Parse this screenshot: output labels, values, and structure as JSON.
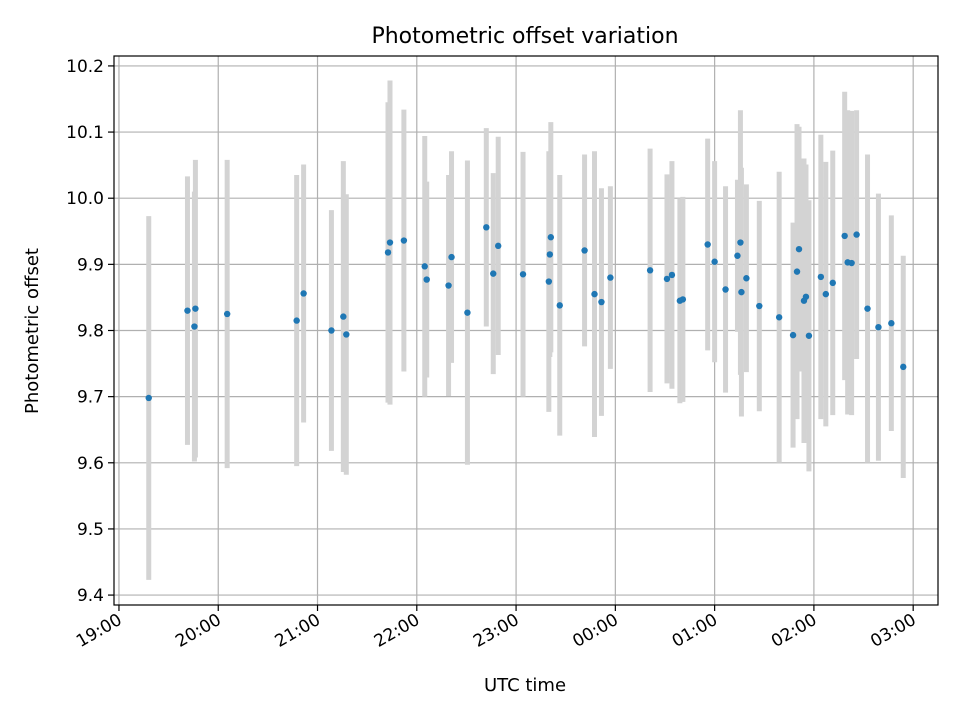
{
  "chart_data": {
    "type": "scatter",
    "title": "Photometric offset variation",
    "xlabel": "UTC time",
    "ylabel": "Photometric offset",
    "x_unit": "hours since 19:00 UTC",
    "xlim": [
      -0.05,
      8.25
    ],
    "ylim": [
      9.385,
      10.215
    ],
    "x_ticks": [
      {
        "v": 0,
        "label": "19:00"
      },
      {
        "v": 1,
        "label": "20:00"
      },
      {
        "v": 2,
        "label": "21:00"
      },
      {
        "v": 3,
        "label": "22:00"
      },
      {
        "v": 4,
        "label": "23:00"
      },
      {
        "v": 5,
        "label": "00:00"
      },
      {
        "v": 6,
        "label": "01:00"
      },
      {
        "v": 7,
        "label": "02:00"
      },
      {
        "v": 8,
        "label": "03:00"
      }
    ],
    "y_ticks": [
      {
        "v": 9.4,
        "label": "9.4"
      },
      {
        "v": 9.5,
        "label": "9.5"
      },
      {
        "v": 9.6,
        "label": "9.6"
      },
      {
        "v": 9.7,
        "label": "9.7"
      },
      {
        "v": 9.8,
        "label": "9.8"
      },
      {
        "v": 9.9,
        "label": "9.9"
      },
      {
        "v": 10.0,
        "label": "10.0"
      },
      {
        "v": 10.1,
        "label": "10.1"
      },
      {
        "v": 10.2,
        "label": "10.2"
      }
    ],
    "grid": true,
    "colors": {
      "points": "#1f77b4",
      "errorbars": "#d3d3d3"
    },
    "points": [
      [
        0.3,
        9.698,
        0.275
      ],
      [
        0.69,
        9.83,
        0.203
      ],
      [
        0.76,
        9.806,
        0.204
      ],
      [
        0.77,
        9.833,
        0.225
      ],
      [
        1.09,
        9.825,
        0.233
      ],
      [
        1.79,
        9.815,
        0.22
      ],
      [
        1.86,
        9.856,
        0.195
      ],
      [
        2.14,
        9.8,
        0.182
      ],
      [
        2.26,
        9.821,
        0.235
      ],
      [
        2.29,
        9.794,
        0.212
      ],
      [
        2.71,
        9.918,
        0.227
      ],
      [
        2.73,
        9.933,
        0.245
      ],
      [
        2.87,
        9.936,
        0.198
      ],
      [
        3.08,
        9.897,
        0.197
      ],
      [
        3.1,
        9.877,
        0.148
      ],
      [
        3.32,
        9.868,
        0.167
      ],
      [
        3.35,
        9.911,
        0.16
      ],
      [
        3.51,
        9.827,
        0.23
      ],
      [
        3.7,
        9.956,
        0.15
      ],
      [
        3.77,
        9.886,
        0.152
      ],
      [
        3.82,
        9.928,
        0.165
      ],
      [
        4.07,
        9.885,
        0.185
      ],
      [
        4.33,
        9.874,
        0.197
      ],
      [
        4.34,
        9.915,
        0.155
      ],
      [
        4.35,
        9.941,
        0.174
      ],
      [
        4.44,
        9.838,
        0.197
      ],
      [
        4.69,
        9.921,
        0.145
      ],
      [
        4.79,
        9.855,
        0.216
      ],
      [
        4.86,
        9.843,
        0.172
      ],
      [
        4.95,
        9.88,
        0.138
      ],
      [
        5.35,
        9.891,
        0.184
      ],
      [
        5.52,
        9.878,
        0.158
      ],
      [
        5.57,
        9.884,
        0.172
      ],
      [
        5.65,
        9.845,
        0.155
      ],
      [
        5.68,
        9.847,
        0.155
      ],
      [
        5.93,
        9.93,
        0.16
      ],
      [
        6.0,
        9.904,
        0.152
      ],
      [
        6.11,
        9.862,
        0.156
      ],
      [
        6.23,
        9.913,
        0.115
      ],
      [
        6.26,
        9.933,
        0.2
      ],
      [
        6.27,
        9.858,
        0.188
      ],
      [
        6.32,
        9.879,
        0.142
      ],
      [
        6.45,
        9.837,
        0.159
      ],
      [
        6.65,
        9.82,
        0.22
      ],
      [
        6.79,
        9.793,
        0.17
      ],
      [
        6.83,
        9.889,
        0.223
      ],
      [
        6.85,
        9.923,
        0.185
      ],
      [
        6.9,
        9.845,
        0.215
      ],
      [
        6.92,
        9.851,
        0.2
      ],
      [
        6.95,
        9.792,
        0.205
      ],
      [
        7.07,
        9.881,
        0.215
      ],
      [
        7.12,
        9.855,
        0.2
      ],
      [
        7.19,
        9.872,
        0.2
      ],
      [
        7.31,
        9.943,
        0.218
      ],
      [
        7.34,
        9.903,
        0.23
      ],
      [
        7.38,
        9.902,
        0.23
      ],
      [
        7.43,
        9.945,
        0.188
      ],
      [
        7.54,
        9.833,
        0.233
      ],
      [
        7.65,
        9.805,
        0.202
      ],
      [
        7.78,
        9.811,
        0.163
      ],
      [
        7.9,
        9.745,
        0.168
      ]
    ]
  }
}
